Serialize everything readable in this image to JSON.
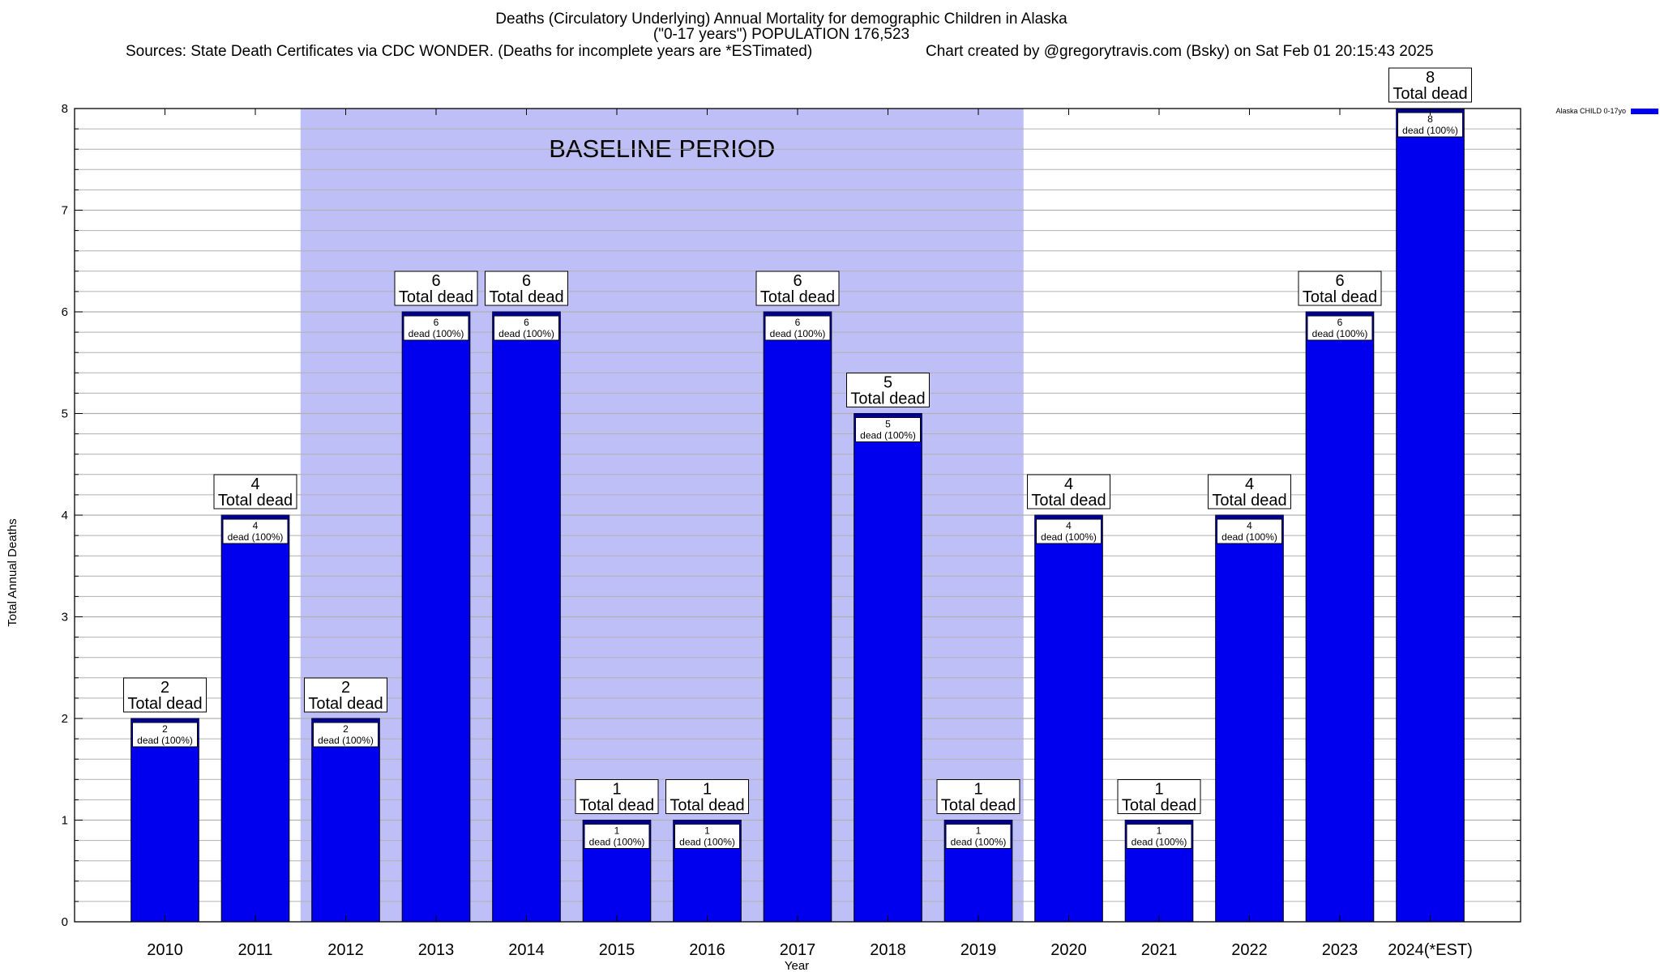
{
  "title": {
    "line1": "Deaths (Circulatory Underlying) Annual Mortality for demographic Children in Alaska",
    "line2": "(\"0-17 years\") POPULATION 176,523",
    "sources": "Sources: State Death Certificates via CDC WONDER. (Deaths for incomplete years are *ESTimated)",
    "credit": "Chart created by @gregorytravis.com (Bsky) on Sat Feb 01 20:15:43 2025"
  },
  "colors": {
    "bar": "#0000ee",
    "bar_top": "#00008b",
    "baseline_band": "#bfbff7",
    "grid": "#b0b0b0"
  },
  "chart_data": {
    "type": "bar",
    "xlabel": "Year",
    "ylabel": "Total Annual Deaths",
    "ylim": [
      0,
      8
    ],
    "yticks": [
      "0",
      "1",
      "2",
      "3",
      "4",
      "5",
      "6",
      "7",
      "8"
    ],
    "grid": true,
    "legend": {
      "placement": "top-right",
      "entries": [
        "Alaska CHILD 0-17yo"
      ]
    },
    "series": [
      {
        "name": "Alaska CHILD 0-17yo",
        "values": [
          2,
          4,
          2,
          6,
          6,
          1,
          1,
          6,
          5,
          1,
          4,
          1,
          4,
          6,
          8
        ]
      }
    ],
    "categories": [
      "2010",
      "2011",
      "2012",
      "2013",
      "2014",
      "2015",
      "2016",
      "2017",
      "2018",
      "2019",
      "2020",
      "2021",
      "2022",
      "2023",
      "2024(*EST)"
    ],
    "total_label_numbers": [
      "2",
      "4",
      "2",
      "6",
      "6",
      "1",
      "1",
      "6",
      "5",
      "1",
      "4",
      "1",
      "4",
      "6",
      "8"
    ],
    "total_label_text": "Total dead",
    "inner_label_numbers": [
      "2",
      "4",
      "2",
      "6",
      "6",
      "1",
      "1",
      "6",
      "5",
      "1",
      "4",
      "1",
      "4",
      "6",
      "8"
    ],
    "inner_label_text": "dead (100%)",
    "baseline": {
      "label": "BASELINE PERIOD",
      "from": "2012",
      "to": "2019"
    }
  }
}
